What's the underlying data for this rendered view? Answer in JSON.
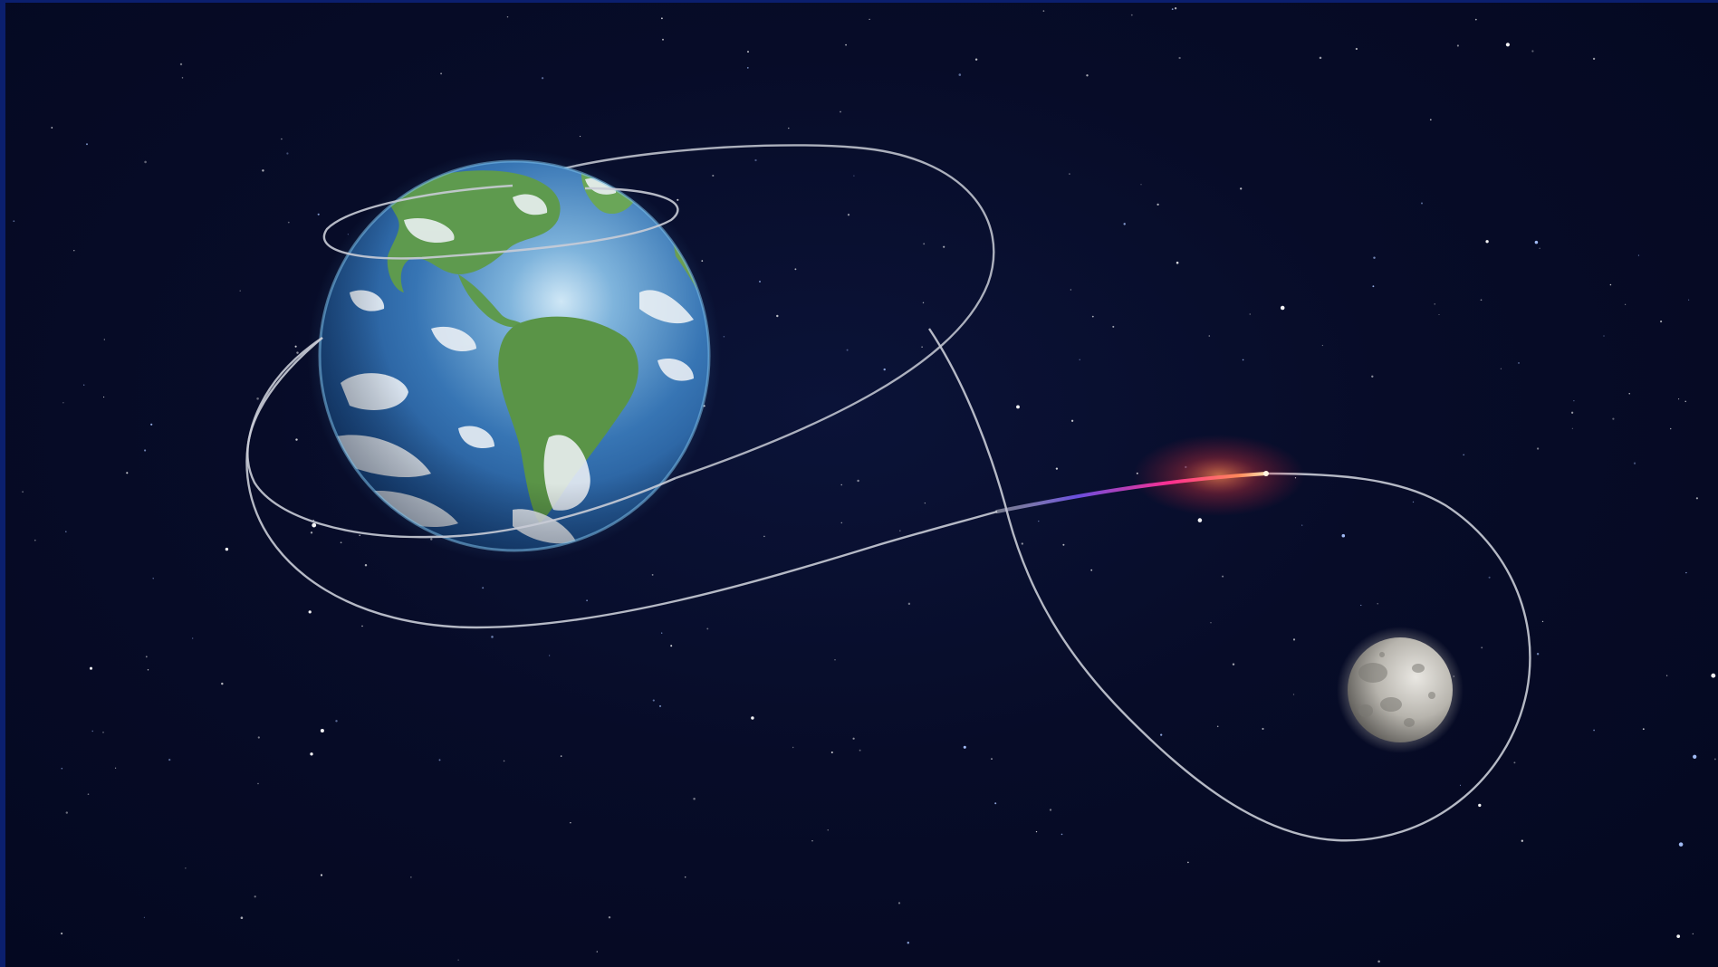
{
  "scene": {
    "subjects": [
      "earth",
      "moon",
      "trajectory",
      "spacecraft-glow",
      "starfield"
    ],
    "colors": {
      "space": "#050a22",
      "frame": "#0b1f6e",
      "ocean": "#2f6fae",
      "land": "#5e9a4e",
      "clouds": "#e8eef4",
      "moon": "#b9b6b0",
      "trajectory": "#c9ccd6",
      "exhaust-hot": "#ffb37a",
      "exhaust-mid": "#ff3e9a",
      "exhaust-cool": "#7a4fe0"
    }
  }
}
